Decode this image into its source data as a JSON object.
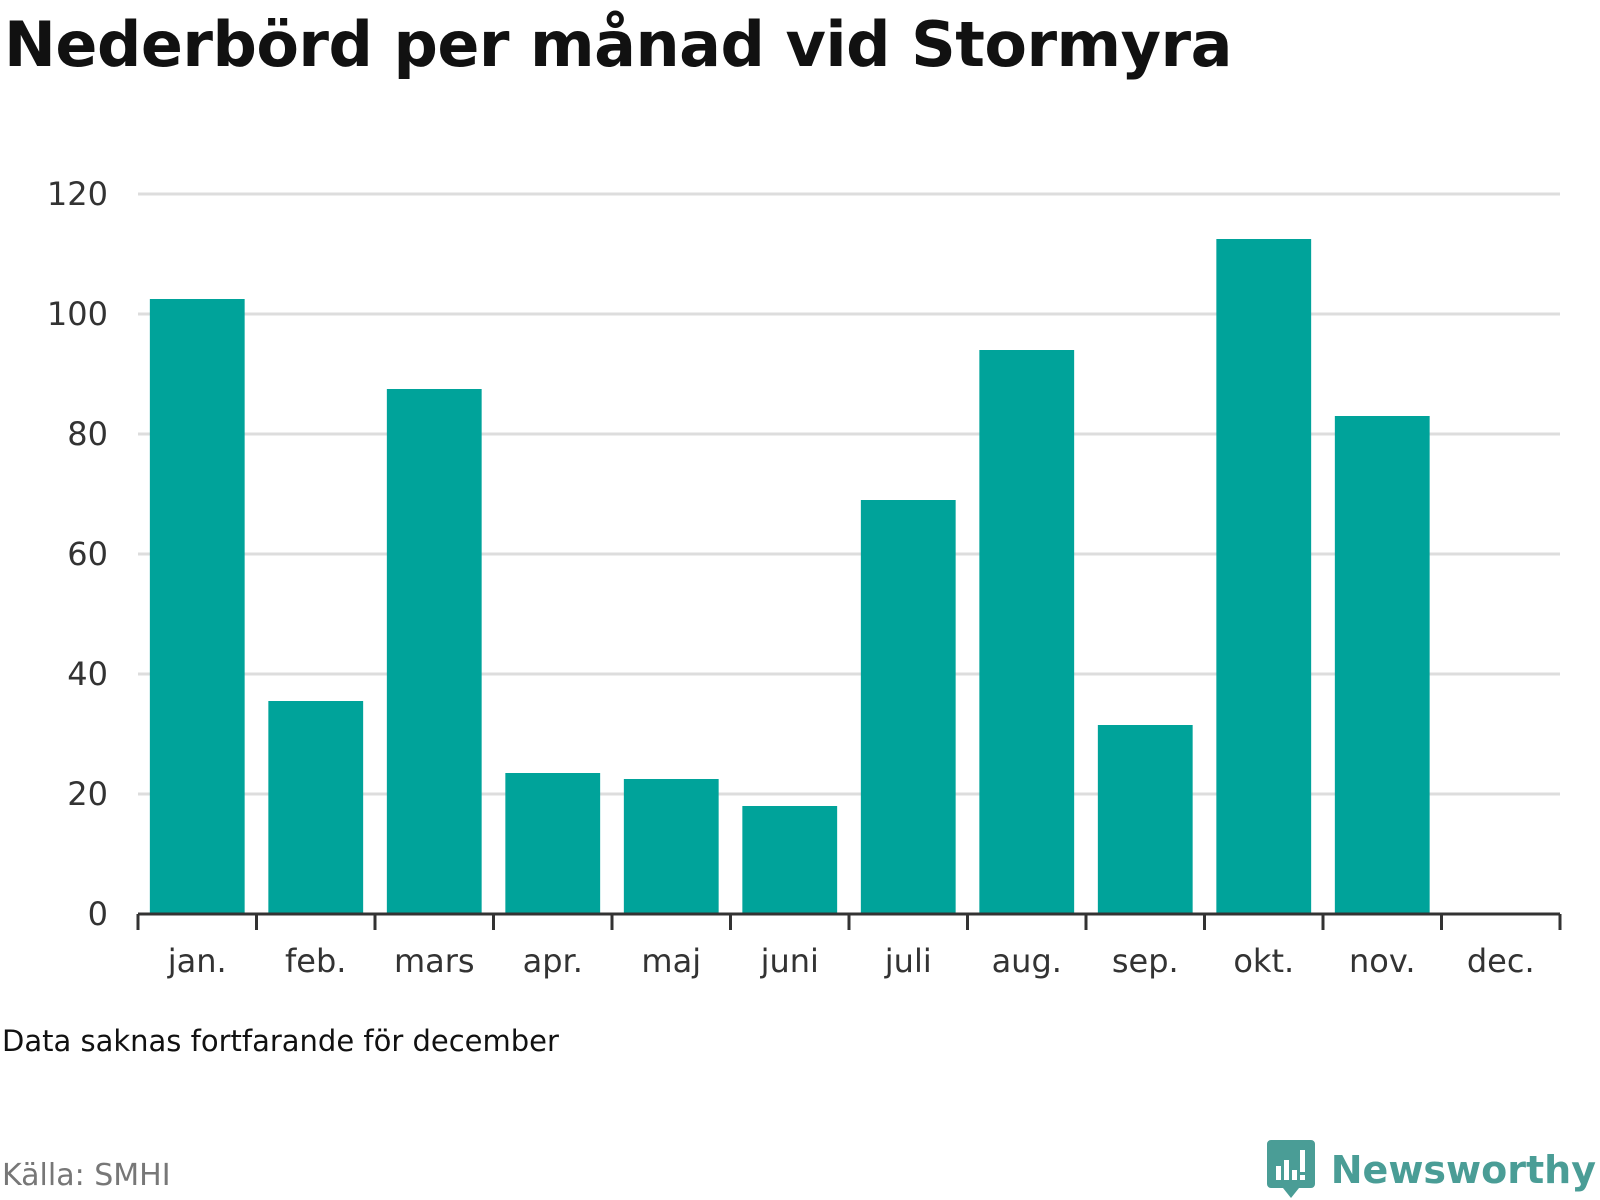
{
  "title": "Nederbörd per månad vid Stormyra",
  "note": "Data saknas fortfarande för december",
  "source": "Källa: SMHI",
  "brand": {
    "name": "Newsworthy",
    "icon": "bar-chart-speech-bubble-icon",
    "color": "#4a9d96"
  },
  "colors": {
    "bar": "#00a39a",
    "grid": "#dddddd",
    "axis": "#333333",
    "text": "#333333"
  },
  "chart_data": {
    "type": "bar",
    "categories": [
      "jan.",
      "feb.",
      "mars",
      "apr.",
      "maj",
      "juni",
      "juli",
      "aug.",
      "sep.",
      "okt.",
      "nov.",
      "dec."
    ],
    "values": [
      102.5,
      35.5,
      87.5,
      23.5,
      22.5,
      18,
      69,
      94,
      31.5,
      112.5,
      83,
      null
    ],
    "yticks": [
      0,
      20,
      40,
      60,
      80,
      100,
      120
    ],
    "ylim": [
      0,
      120
    ],
    "grid": true,
    "legend": "none"
  }
}
